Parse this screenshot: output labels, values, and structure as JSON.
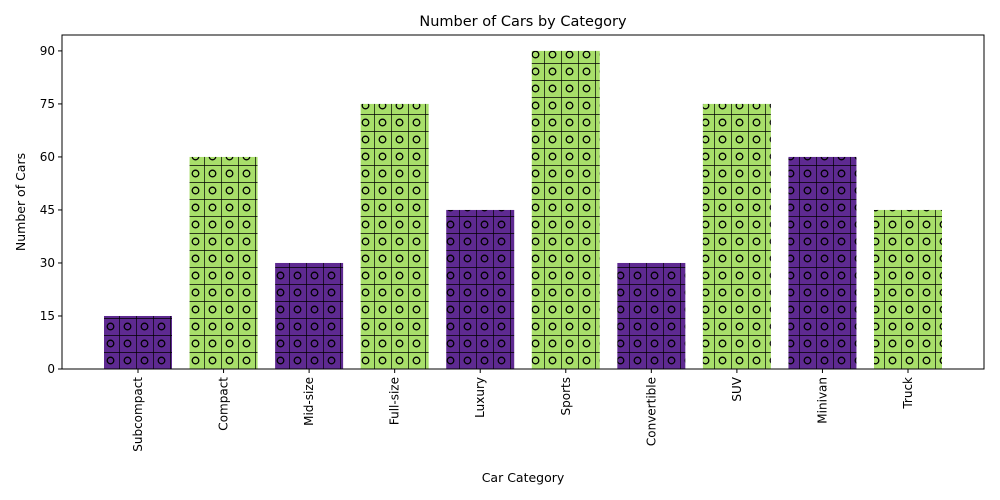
{
  "chart_data": {
    "type": "bar",
    "title": "Number of Cars by Category",
    "xlabel": "Car Category",
    "ylabel": "Number of Cars",
    "categories": [
      "Subcompact",
      "Compact",
      "Mid-size",
      "Full-size",
      "Luxury",
      "Sports",
      "Convertible",
      "SUV",
      "Minivan",
      "Truck"
    ],
    "values": [
      15,
      60,
      30,
      75,
      45,
      90,
      30,
      75,
      60,
      45
    ],
    "bar_colors": [
      "#5e2a91",
      "#a8df6a",
      "#5e2a91",
      "#a8df6a",
      "#5e2a91",
      "#a8df6a",
      "#5e2a91",
      "#a8df6a",
      "#5e2a91",
      "#a8df6a"
    ],
    "ylim": [
      0,
      94.5
    ],
    "yticks": [
      0,
      15,
      30,
      45,
      60,
      75,
      90
    ],
    "grid": false,
    "legend": "none",
    "hatch": "grid with circles"
  }
}
